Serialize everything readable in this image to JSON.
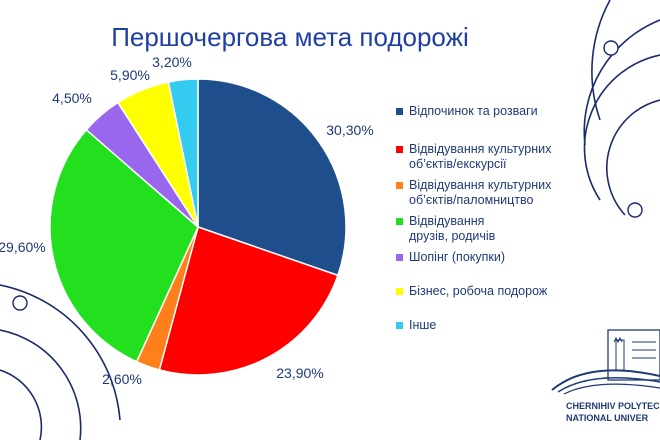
{
  "chart_data": {
    "type": "pie",
    "title": "Першочергова мета подорожі",
    "categories": [
      "Відпочинок та розваги",
      "Відвідування культурних об’єктів/екскурсії",
      "Відвідування культурних об’єктів/паломництво",
      "Відвідування друзів, родичів",
      "Шопінг (покупки)",
      "Бізнес, робоча подорож",
      "Інше"
    ],
    "values": [
      30.3,
      23.9,
      2.6,
      29.6,
      4.5,
      5.9,
      3.2
    ],
    "value_labels": [
      "30,30%",
      "23,90%",
      "2,60%",
      "29,60%",
      "4,50%",
      "5,90%",
      "3,20%"
    ],
    "legend_labels": [
      "Відпочинок та розваги",
      "Відвідування культурних\nоб’єктів/екскурсії",
      "Відвідування культурних\nоб’єктів/паломництво",
      "Відвідування\nдрузів, родичів",
      "Шопінг (покупки)",
      "Бізнес, робоча подорож",
      "Інше"
    ],
    "colors": [
      "#1f4e8c",
      "#ff0000",
      "#ff7f1a",
      "#22e01e",
      "#9966ee",
      "#ffff00",
      "#33ccf0"
    ],
    "legend_position": "right"
  },
  "logo": {
    "line1": "CHERNIHIV POLYTEC",
    "line2": "NATIONAL UNIVER"
  }
}
